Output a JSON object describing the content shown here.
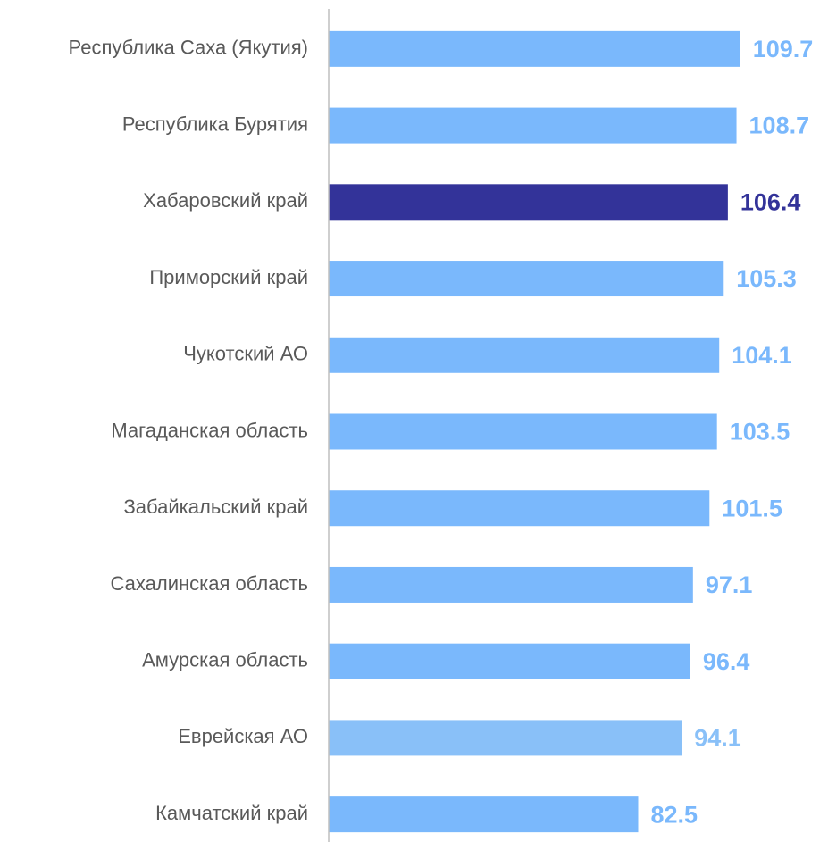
{
  "chart_data": {
    "type": "barh",
    "categories": [
      "Республика Саха (Якутия)",
      "Республика Бурятия",
      "Хабаровский край",
      "Приморский край",
      "Чукотский АО",
      "Магаданская область",
      "Забайкальский край",
      "Сахалинская область",
      "Амурская область",
      "Еврейская АО",
      "Камчатский край"
    ],
    "values": [
      109.7,
      108.7,
      106.4,
      105.3,
      104.1,
      103.5,
      101.5,
      97.1,
      96.4,
      94.1,
      82.5
    ],
    "colors": [
      "#7ab8fc",
      "#7ab8fc",
      "#333399",
      "#7ab8fc",
      "#7ab8fc",
      "#7ab8fc",
      "#7ab8fc",
      "#7ab8fc",
      "#7ab8fc",
      "#89c0f8",
      "#7ab8fc"
    ],
    "xlim": [
      0,
      130
    ]
  }
}
